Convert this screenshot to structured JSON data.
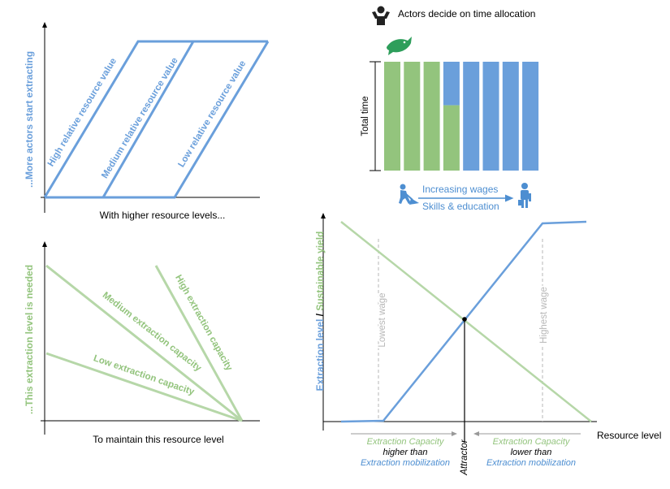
{
  "colors": {
    "blue": "#6a9fdb",
    "green": "#93c47d",
    "axis": "#000000",
    "gray": "#b7b7b7",
    "dark": "#1b1b1b",
    "teal": "#2e9e5b",
    "icon_blue": "#4d8ed1"
  },
  "icons": {
    "actors": "person-with-raised-hands-icon",
    "fish": "fish-icon",
    "worker": "digging-worker-icon",
    "professional": "professional-worker-icon"
  },
  "top_left": {
    "y_label": "...More actors start extracting",
    "x_label": "With higher resource levels...",
    "lines": [
      "High relative resource value",
      "Medium relative resource value",
      "Low relative resource value"
    ]
  },
  "bottom_left": {
    "y_label": "...This extraction level  is needed",
    "x_label": "To maintain this resource level",
    "lines": [
      "High extraction capacity",
      "Medium extraction capacity",
      "Low extraction capacity"
    ]
  },
  "time_allocation": {
    "title": "Actors decide on time allocation",
    "y_label": "Total time",
    "green_fractions": [
      1,
      1,
      1,
      0.6,
      0,
      0,
      0,
      0
    ],
    "arrow_top": "Increasing wages",
    "arrow_bottom": "Skills & education"
  },
  "bottom_right": {
    "y_label_blue": "Extraction level",
    "y_label_sep": " / ",
    "y_label_green": "Sustainable yield",
    "x_label": "Resource level",
    "lowest_wage": "Lowest wage",
    "highest_wage": "Highest wage",
    "attractor": "Attractor",
    "left_note": {
      "l1": "Extraction Capacity",
      "l2": "higher than",
      "l3": "Extraction mobilization"
    },
    "right_note": {
      "l1": "Extraction Capacity",
      "l2": "lower than",
      "l3": "Extraction mobilization"
    }
  }
}
